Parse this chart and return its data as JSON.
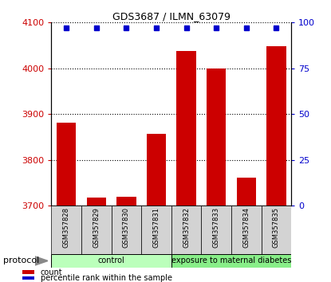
{
  "title": "GDS3687 / ILMN_63079",
  "samples": [
    "GSM357828",
    "GSM357829",
    "GSM357830",
    "GSM357831",
    "GSM357832",
    "GSM357833",
    "GSM357834",
    "GSM357835"
  ],
  "counts": [
    3882,
    3718,
    3720,
    3858,
    4038,
    4000,
    3762,
    4048
  ],
  "percentile_ranks": [
    100,
    100,
    100,
    100,
    100,
    100,
    100,
    100
  ],
  "ylim_left": [
    3700,
    4100
  ],
  "ylim_right": [
    0,
    100
  ],
  "yticks_left": [
    3700,
    3800,
    3900,
    4000,
    4100
  ],
  "yticks_right": [
    0,
    25,
    50,
    75,
    100
  ],
  "bar_color": "#cc0000",
  "dot_color": "#0000cc",
  "groups": [
    {
      "label": "control",
      "start": 0,
      "end": 4,
      "color": "#bbffbb"
    },
    {
      "label": "exposure to maternal diabetes",
      "start": 4,
      "end": 8,
      "color": "#88ee88"
    }
  ],
  "protocol_label": "protocol",
  "legend_items": [
    {
      "color": "#cc0000",
      "label": "count"
    },
    {
      "color": "#0000cc",
      "label": "percentile rank within the sample"
    }
  ],
  "tick_label_color_left": "#cc0000",
  "tick_label_color_right": "#0000cc",
  "label_box_color": "#d3d3d3",
  "title_fontsize": 9,
  "tick_fontsize": 8,
  "sample_fontsize": 6,
  "group_fontsize": 7,
  "legend_fontsize": 7,
  "protocol_fontsize": 8
}
